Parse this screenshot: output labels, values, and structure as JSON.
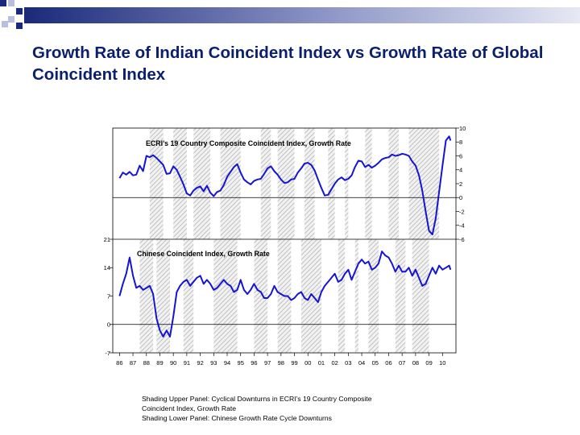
{
  "slide": {
    "title": "Growth Rate of Indian Coincident Index vs Growth Rate of Global Coincident Index",
    "footnote_lines": [
      "Shading Upper Panel: Cyclical Downturns in ECRI’s 19 Country Composite",
      "Coincident Index, Growth Rate",
      "Shading Lower Panel: Chinese Growth Rate Cycle Downturns"
    ]
  },
  "colors": {
    "line": "#1414d2",
    "title": "#0a1f6e",
    "shading_stroke": "#b4b4b4",
    "deco_dark": "#1a2a7a",
    "deco_light": "#b8bedd"
  },
  "chart_data": [
    {
      "type": "line",
      "panel": "upper",
      "label": "ECRI’s 19 Country Composite Coincident Index, Growth Rate",
      "y_axis_side": "right",
      "ylim": [
        -6,
        10
      ],
      "yticks": [
        10,
        8,
        6,
        4,
        2,
        0,
        -2,
        -4,
        -6
      ],
      "zero_line": true,
      "shaded_periods": [
        [
          1988.25,
          1989.25
        ],
        [
          1990.0,
          1991.0
        ],
        [
          1991.5,
          1992.75
        ],
        [
          1993.5,
          1995.0
        ],
        [
          1996.5,
          1997.25
        ],
        [
          1997.75,
          1999.0
        ],
        [
          1999.75,
          2000.5
        ],
        [
          2001.5,
          2002.0
        ],
        [
          2002.75,
          2003.0
        ],
        [
          2004.25,
          2004.75
        ],
        [
          2006.0,
          2006.75
        ],
        [
          2007.5,
          2009.75
        ]
      ],
      "points": [
        [
          1986.0,
          2.8
        ],
        [
          1986.25,
          3.6
        ],
        [
          1986.5,
          3.3
        ],
        [
          1986.75,
          3.7
        ],
        [
          1987.0,
          3.2
        ],
        [
          1987.25,
          3.3
        ],
        [
          1987.5,
          4.6
        ],
        [
          1987.75,
          3.8
        ],
        [
          1988.0,
          6.0
        ],
        [
          1988.25,
          5.8
        ],
        [
          1988.5,
          6.1
        ],
        [
          1988.75,
          5.7
        ],
        [
          1989.0,
          5.2
        ],
        [
          1989.25,
          4.7
        ],
        [
          1989.5,
          3.4
        ],
        [
          1989.75,
          3.5
        ],
        [
          1990.0,
          4.5
        ],
        [
          1990.25,
          4.0
        ],
        [
          1990.5,
          3.0
        ],
        [
          1990.75,
          1.9
        ],
        [
          1991.0,
          0.6
        ],
        [
          1991.25,
          0.3
        ],
        [
          1991.5,
          1.0
        ],
        [
          1991.75,
          1.4
        ],
        [
          1992.0,
          1.6
        ],
        [
          1992.25,
          0.9
        ],
        [
          1992.5,
          1.7
        ],
        [
          1992.75,
          0.7
        ],
        [
          1993.0,
          0.2
        ],
        [
          1993.25,
          0.8
        ],
        [
          1993.5,
          1.0
        ],
        [
          1993.75,
          1.8
        ],
        [
          1994.0,
          3.0
        ],
        [
          1994.25,
          3.7
        ],
        [
          1994.5,
          4.4
        ],
        [
          1994.75,
          4.8
        ],
        [
          1995.0,
          3.6
        ],
        [
          1995.25,
          2.6
        ],
        [
          1995.5,
          2.2
        ],
        [
          1995.75,
          1.9
        ],
        [
          1996.0,
          2.4
        ],
        [
          1996.25,
          2.6
        ],
        [
          1996.5,
          2.7
        ],
        [
          1996.75,
          3.4
        ],
        [
          1997.0,
          4.2
        ],
        [
          1997.25,
          4.5
        ],
        [
          1997.5,
          3.8
        ],
        [
          1997.75,
          3.3
        ],
        [
          1998.0,
          2.6
        ],
        [
          1998.25,
          2.1
        ],
        [
          1998.5,
          2.2
        ],
        [
          1998.75,
          2.6
        ],
        [
          1999.0,
          2.7
        ],
        [
          1999.25,
          3.6
        ],
        [
          1999.5,
          4.2
        ],
        [
          1999.75,
          4.9
        ],
        [
          2000.0,
          5.0
        ],
        [
          2000.25,
          4.7
        ],
        [
          2000.5,
          3.9
        ],
        [
          2000.75,
          2.6
        ],
        [
          2001.0,
          1.4
        ],
        [
          2001.25,
          0.3
        ],
        [
          2001.5,
          0.4
        ],
        [
          2001.75,
          1.2
        ],
        [
          2002.0,
          2.0
        ],
        [
          2002.25,
          2.6
        ],
        [
          2002.5,
          2.9
        ],
        [
          2002.75,
          2.5
        ],
        [
          2003.0,
          2.7
        ],
        [
          2003.25,
          3.2
        ],
        [
          2003.5,
          4.4
        ],
        [
          2003.75,
          5.3
        ],
        [
          2004.0,
          5.2
        ],
        [
          2004.25,
          4.4
        ],
        [
          2004.5,
          4.7
        ],
        [
          2004.75,
          4.3
        ],
        [
          2005.0,
          4.6
        ],
        [
          2005.25,
          5.0
        ],
        [
          2005.5,
          5.5
        ],
        [
          2005.75,
          5.7
        ],
        [
          2006.0,
          5.8
        ],
        [
          2006.25,
          6.2
        ],
        [
          2006.5,
          6.0
        ],
        [
          2006.75,
          6.1
        ],
        [
          2007.0,
          6.3
        ],
        [
          2007.25,
          6.2
        ],
        [
          2007.5,
          6.0
        ],
        [
          2007.75,
          5.2
        ],
        [
          2008.0,
          4.6
        ],
        [
          2008.25,
          3.2
        ],
        [
          2008.5,
          1.0
        ],
        [
          2008.75,
          -2.0
        ],
        [
          2009.0,
          -4.8
        ],
        [
          2009.25,
          -5.3
        ],
        [
          2009.5,
          -3.0
        ],
        [
          2009.75,
          0.8
        ],
        [
          2010.0,
          4.6
        ],
        [
          2010.25,
          8.2
        ],
        [
          2010.5,
          8.8
        ],
        [
          2010.6,
          8.2
        ]
      ]
    },
    {
      "type": "line",
      "panel": "lower",
      "label": "Chinese Coincident Index, Growth Rate",
      "y_axis_side": "left",
      "ylim": [
        -7,
        21
      ],
      "yticks": [
        21,
        14,
        7,
        0,
        -7
      ],
      "zero_line": true,
      "shaded_periods": [
        [
          1987.5,
          1988.5
        ],
        [
          1988.75,
          1989.75
        ],
        [
          1990.75,
          1991.5
        ],
        [
          1993.0,
          1994.75
        ],
        [
          1996.0,
          1997.0
        ],
        [
          1997.75,
          1998.75
        ],
        [
          1999.5,
          2001.0
        ],
        [
          2002.25,
          2002.75
        ],
        [
          2003.5,
          2003.75
        ],
        [
          2004.5,
          2005.25
        ],
        [
          2006.5,
          2007.25
        ],
        [
          2007.75,
          2009.0
        ]
      ],
      "points": [
        [
          1986.0,
          7.0
        ],
        [
          1986.25,
          10.0
        ],
        [
          1986.5,
          12.5
        ],
        [
          1986.75,
          16.5
        ],
        [
          1987.0,
          12.0
        ],
        [
          1987.25,
          9.0
        ],
        [
          1987.5,
          9.5
        ],
        [
          1987.75,
          8.5
        ],
        [
          1988.0,
          9.0
        ],
        [
          1988.25,
          9.5
        ],
        [
          1988.5,
          7.5
        ],
        [
          1988.75,
          1.5
        ],
        [
          1989.0,
          -1.5
        ],
        [
          1989.25,
          -3.0
        ],
        [
          1989.5,
          -1.5
        ],
        [
          1989.75,
          -3.0
        ],
        [
          1990.0,
          2.0
        ],
        [
          1990.25,
          8.0
        ],
        [
          1990.5,
          9.5
        ],
        [
          1990.75,
          10.5
        ],
        [
          1991.0,
          11.0
        ],
        [
          1991.25,
          9.5
        ],
        [
          1991.5,
          10.5
        ],
        [
          1991.75,
          11.5
        ],
        [
          1992.0,
          12.0
        ],
        [
          1992.25,
          10.0
        ],
        [
          1992.5,
          11.0
        ],
        [
          1992.75,
          10.0
        ],
        [
          1993.0,
          8.5
        ],
        [
          1993.25,
          9.0
        ],
        [
          1993.5,
          10.0
        ],
        [
          1993.75,
          11.0
        ],
        [
          1994.0,
          10.0
        ],
        [
          1994.25,
          9.5
        ],
        [
          1994.5,
          8.0
        ],
        [
          1994.75,
          8.5
        ],
        [
          1995.0,
          11.0
        ],
        [
          1995.25,
          8.5
        ],
        [
          1995.5,
          7.5
        ],
        [
          1995.75,
          8.5
        ],
        [
          1996.0,
          10.0
        ],
        [
          1996.25,
          8.5
        ],
        [
          1996.5,
          8.0
        ],
        [
          1996.75,
          6.5
        ],
        [
          1997.0,
          6.5
        ],
        [
          1997.25,
          7.5
        ],
        [
          1997.5,
          9.5
        ],
        [
          1997.75,
          8.0
        ],
        [
          1998.0,
          7.5
        ],
        [
          1998.25,
          7.0
        ],
        [
          1998.5,
          7.0
        ],
        [
          1998.75,
          6.0
        ],
        [
          1999.0,
          6.5
        ],
        [
          1999.25,
          7.5
        ],
        [
          1999.5,
          8.0
        ],
        [
          1999.75,
          6.5
        ],
        [
          2000.0,
          6.0
        ],
        [
          2000.25,
          7.5
        ],
        [
          2000.5,
          6.5
        ],
        [
          2000.75,
          5.5
        ],
        [
          2001.0,
          8.0
        ],
        [
          2001.25,
          9.5
        ],
        [
          2001.5,
          10.5
        ],
        [
          2001.75,
          11.5
        ],
        [
          2002.0,
          12.5
        ],
        [
          2002.25,
          10.5
        ],
        [
          2002.5,
          11.0
        ],
        [
          2002.75,
          12.5
        ],
        [
          2003.0,
          13.5
        ],
        [
          2003.25,
          11.0
        ],
        [
          2003.5,
          13.0
        ],
        [
          2003.75,
          15.0
        ],
        [
          2004.0,
          16.0
        ],
        [
          2004.25,
          15.0
        ],
        [
          2004.5,
          15.5
        ],
        [
          2004.75,
          13.5
        ],
        [
          2005.0,
          14.0
        ],
        [
          2005.25,
          15.0
        ],
        [
          2005.5,
          18.0
        ],
        [
          2005.75,
          17.0
        ],
        [
          2006.0,
          16.5
        ],
        [
          2006.25,
          15.0
        ],
        [
          2006.5,
          13.0
        ],
        [
          2006.75,
          14.5
        ],
        [
          2007.0,
          13.0
        ],
        [
          2007.25,
          13.0
        ],
        [
          2007.5,
          14.0
        ],
        [
          2007.75,
          12.0
        ],
        [
          2008.0,
          13.5
        ],
        [
          2008.25,
          11.5
        ],
        [
          2008.5,
          9.5
        ],
        [
          2008.75,
          10.0
        ],
        [
          2009.0,
          12.0
        ],
        [
          2009.25,
          14.0
        ],
        [
          2009.5,
          12.5
        ],
        [
          2009.75,
          14.5
        ],
        [
          2010.0,
          13.5
        ],
        [
          2010.25,
          14.0
        ],
        [
          2010.5,
          14.5
        ],
        [
          2010.6,
          13.5
        ]
      ]
    },
    {
      "type": "axis",
      "panel": "shared-x",
      "xlim": [
        1985.5,
        2011.0
      ],
      "xticks": [
        1986,
        1987,
        1988,
        1989,
        1990,
        1991,
        1992,
        1993,
        1994,
        1995,
        1996,
        1997,
        1998,
        1999,
        2000,
        2001,
        2002,
        2003,
        2004,
        2005,
        2006,
        2007,
        2008,
        2009,
        2010
      ],
      "xtick_labels": [
        "86",
        "87",
        "88",
        "89",
        "90",
        "91",
        "92",
        "93",
        "94",
        "95",
        "96",
        "97",
        "98",
        "99",
        "00",
        "01",
        "02",
        "03",
        "04",
        "05",
        "06",
        "07",
        "08",
        "09",
        "10"
      ]
    }
  ]
}
